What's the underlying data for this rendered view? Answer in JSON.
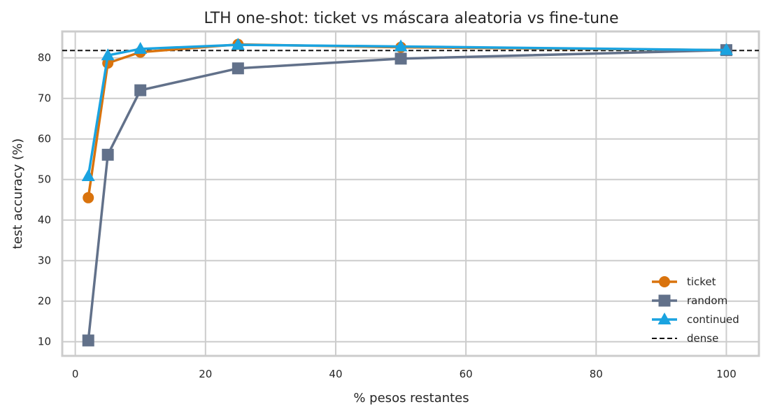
{
  "chart_data": {
    "type": "line",
    "title": "LTH one-shot: ticket vs máscara aleatoria vs fine-tune",
    "xlabel": "% pesos restantes",
    "ylabel": "test accuracy (%)",
    "xlim": [
      -2,
      105
    ],
    "ylim": [
      6.5,
      86.5
    ],
    "xticks": [
      0,
      20,
      40,
      60,
      80,
      100
    ],
    "yticks": [
      10,
      20,
      30,
      40,
      50,
      60,
      70,
      80
    ],
    "grid": true,
    "legend_position": "bottom-right",
    "series": [
      {
        "name": "ticket",
        "color": "#d9730d",
        "marker": "circle",
        "x": [
          2,
          5,
          10,
          25,
          50,
          100
        ],
        "y": [
          45.5,
          78.7,
          81.4,
          83.3,
          82.6,
          81.9
        ]
      },
      {
        "name": "random",
        "color": "#62718a",
        "marker": "square",
        "x": [
          2,
          5,
          10,
          25,
          50,
          100
        ],
        "y": [
          10.3,
          56.1,
          72.0,
          77.4,
          79.8,
          81.9
        ]
      },
      {
        "name": "continued",
        "color": "#1aa3e0",
        "marker": "triangle",
        "x": [
          2,
          5,
          10,
          25,
          50,
          100
        ],
        "y": [
          50.8,
          80.6,
          82.2,
          83.2,
          82.8,
          81.9
        ]
      }
    ],
    "reference_line": {
      "name": "dense",
      "y": 81.8,
      "color": "#111111",
      "style": "dashed"
    }
  }
}
